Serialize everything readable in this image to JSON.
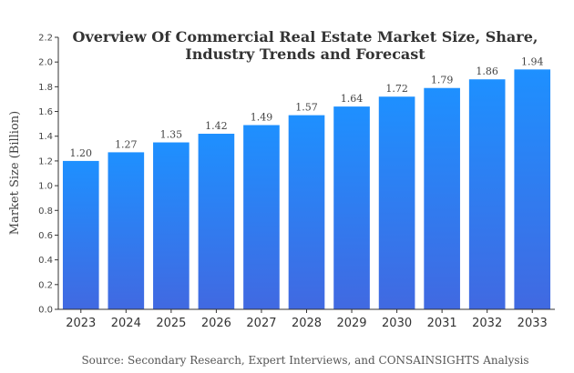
{
  "chart_data": {
    "type": "bar",
    "title_lines": [
      "Overview Of Commercial Real Estate Market Size, Share,",
      "Industry Trends and Forecast"
    ],
    "ylabel": "Market Size (Billion)",
    "xlabel": "",
    "source": "Source: Secondary Research, Expert Interviews, and CONSAINSIGHTS Analysis",
    "categories": [
      "2023",
      "2024",
      "2025",
      "2026",
      "2027",
      "2028",
      "2029",
      "2030",
      "2031",
      "2032",
      "2033"
    ],
    "values": [
      1.2,
      1.27,
      1.35,
      1.42,
      1.49,
      1.57,
      1.64,
      1.72,
      1.79,
      1.86,
      1.94
    ],
    "value_labels": [
      "1.20",
      "1.27",
      "1.35",
      "1.42",
      "1.49",
      "1.57",
      "1.64",
      "1.72",
      "1.79",
      "1.86",
      "1.94"
    ],
    "ylim": [
      0,
      2.2
    ],
    "yticks": [
      "0.0",
      "0.2",
      "0.4",
      "0.6",
      "0.8",
      "1.0",
      "1.2",
      "1.4",
      "1.6",
      "1.8",
      "2.0",
      "2.2"
    ],
    "grid": false,
    "bar_color_top": "#1e90ff",
    "bar_color_bottom": "#4169e1"
  }
}
